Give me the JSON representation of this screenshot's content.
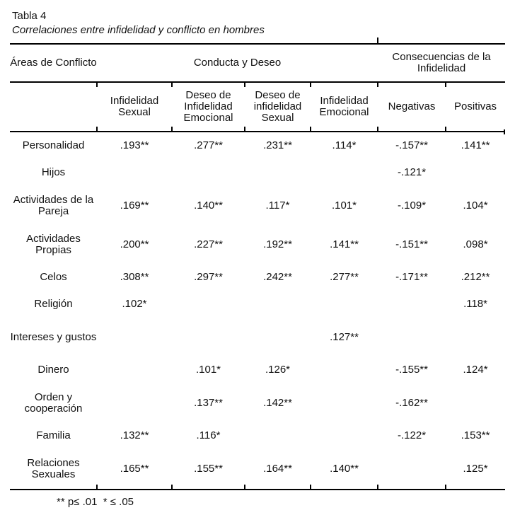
{
  "title": "Tabla 4",
  "subtitle": "Correlaciones entre infidelidad y conflicto en hombres",
  "table": {
    "corner_header": "Áreas de Conflicto",
    "group_headers": [
      "Conducta y Deseo",
      "Consecuencias de la Infidelidad"
    ],
    "column_headers": [
      "Infidelidad Sexual",
      "Deseo de Infidelidad Emocional",
      "Deseo de infidelidad Sexual",
      "Infidelidad Emocional",
      "Negativas",
      "Positivas"
    ],
    "rows": [
      {
        "label": "Personalidad",
        "tall": false,
        "values": [
          ".193**",
          ".277**",
          ".231**",
          ".114*",
          "-.157**",
          ".141**"
        ]
      },
      {
        "label": "Hijos",
        "tall": false,
        "values": [
          "",
          "",
          "",
          "",
          "-.121*",
          ""
        ]
      },
      {
        "label": "Actividades de la Pareja",
        "tall": true,
        "values": [
          ".169**",
          ".140**",
          ".117*",
          ".101*",
          "-.109*",
          ".104*"
        ]
      },
      {
        "label": "Actividades Propias",
        "tall": true,
        "values": [
          ".200**",
          ".227**",
          ".192**",
          ".141**",
          "-.151**",
          ".098*"
        ]
      },
      {
        "label": "Celos",
        "tall": false,
        "values": [
          ".308**",
          ".297**",
          ".242**",
          ".277**",
          "-.171**",
          ".212**"
        ]
      },
      {
        "label": "Religión",
        "tall": false,
        "values": [
          ".102*",
          "",
          "",
          "",
          "",
          ".118*"
        ]
      },
      {
        "label": "Intereses y gustos",
        "tall": true,
        "values": [
          "",
          "",
          "",
          ".127**",
          "",
          ""
        ]
      },
      {
        "label": "Dinero",
        "tall": false,
        "values": [
          "",
          ".101*",
          ".126*",
          "",
          "-.155**",
          ".124*"
        ]
      },
      {
        "label": "Orden y cooperación",
        "tall": true,
        "values": [
          "",
          ".137**",
          ".142**",
          "",
          "-.162**",
          ""
        ]
      },
      {
        "label": "Familia",
        "tall": false,
        "values": [
          ".132**",
          ".116*",
          "",
          "",
          "-.122*",
          ".153**"
        ]
      },
      {
        "label": "Relaciones Sexuales",
        "tall": true,
        "values": [
          ".165**",
          ".155**",
          ".164**",
          ".140**",
          "",
          ".125*"
        ]
      }
    ],
    "footnote": "** p≤ .01  * ≤ .05"
  },
  "colors": {
    "background": "#ffffff",
    "text": "#111111",
    "rule": "#000000"
  }
}
